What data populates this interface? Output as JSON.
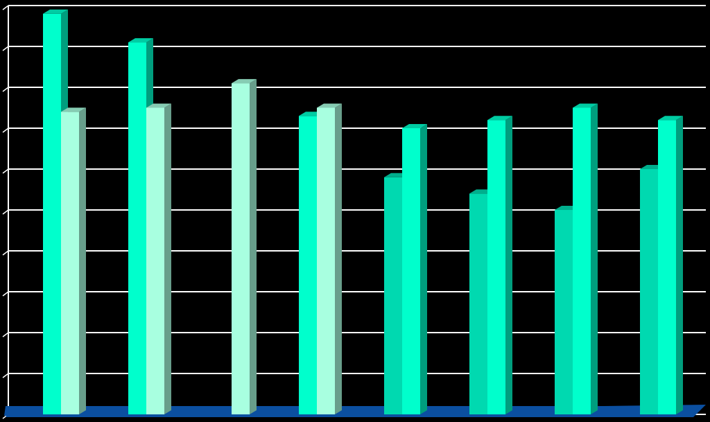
{
  "chart_data": {
    "type": "bar",
    "categories": [
      "",
      "",
      "",
      "",
      "",
      "",
      "",
      ""
    ],
    "ylim": [
      0,
      10
    ],
    "grid": true,
    "series": [
      {
        "values": [
          9.8,
          9.1,
          null,
          7.3,
          5.8,
          5.4,
          5.0,
          6.0
        ]
      },
      {
        "values": [
          7.4,
          7.5,
          8.1,
          7.5,
          7.0,
          7.2,
          7.5,
          7.2
        ]
      }
    ]
  },
  "colors": {
    "background": "#000000",
    "gridline": "#ffffff",
    "floor": "#0b4fa0",
    "bar_bright": "#00ffcc",
    "bar_pale": "#a8ffe0",
    "bar_medium": "#00d9b0"
  }
}
